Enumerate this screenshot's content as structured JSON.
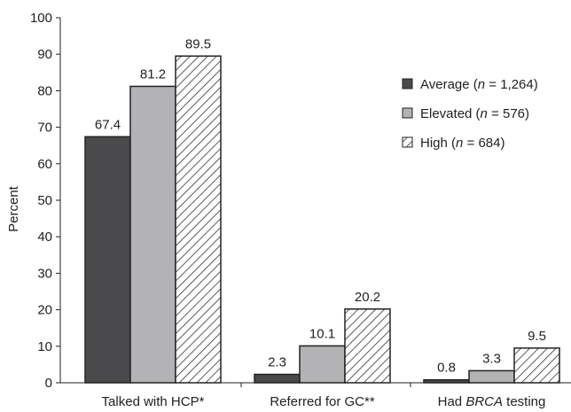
{
  "chart_data": {
    "type": "bar",
    "ylabel": "Percent",
    "ylim": [
      0,
      100
    ],
    "yticks": [
      0,
      10,
      20,
      30,
      40,
      50,
      60,
      70,
      80,
      90,
      100
    ],
    "categories": [
      {
        "prefix": "Talked with HCP*",
        "italic": "",
        "suffix": ""
      },
      {
        "prefix": "Referred for GC**",
        "italic": "",
        "suffix": ""
      },
      {
        "prefix": "Had ",
        "italic": "BRCA",
        "suffix": " testing"
      }
    ],
    "series": [
      {
        "name_prefix": "Average (",
        "name_n": "n",
        "name_suffix": " = 1,264)",
        "style": "solid-dark",
        "color": "#4a4a4c",
        "values": [
          67.4,
          2.3,
          0.8
        ],
        "labels": [
          "67.4",
          "2.3",
          "0.8"
        ]
      },
      {
        "name_prefix": "Elevated (",
        "name_n": "n",
        "name_suffix": " = 576)",
        "style": "solid-light",
        "color": "#b3b3b5",
        "values": [
          81.2,
          10.1,
          3.3
        ],
        "labels": [
          "81.2",
          "10.1",
          "3.3"
        ]
      },
      {
        "name_prefix": "High (",
        "name_n": "n",
        "name_suffix": " = 684)",
        "style": "hatched",
        "color": "#ffffff",
        "values": [
          89.5,
          20.2,
          9.5
        ],
        "labels": [
          "89.5",
          "20.2",
          "9.5"
        ]
      }
    ],
    "legend_position": "right",
    "grid": false
  }
}
